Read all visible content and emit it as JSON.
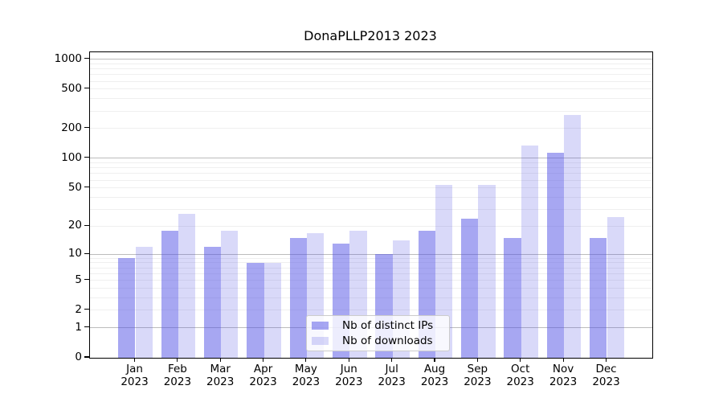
{
  "title": "DonaPLLP2013 2023",
  "chart_data": {
    "type": "bar",
    "title": "DonaPLLP2013 2023",
    "categories": [
      "Jan 2023",
      "Feb 2023",
      "Mar 2023",
      "Apr 2023",
      "May 2023",
      "Jun 2023",
      "Jul 2023",
      "Aug 2023",
      "Sep 2023",
      "Oct 2023",
      "Nov 2023",
      "Dec 2023"
    ],
    "series": [
      {
        "name": "Nb of distinct IPs",
        "color": "rgba(80,80,229,0.5)",
        "values": [
          9,
          18,
          12,
          8,
          15,
          13,
          10,
          18,
          24,
          15,
          113,
          15
        ]
      },
      {
        "name": "Nb of downloads",
        "color": "rgba(80,80,229,0.22)",
        "values": [
          12,
          27,
          18,
          8,
          17,
          18,
          14,
          54,
          54,
          135,
          275,
          25
        ]
      }
    ],
    "y_axis": {
      "scale": "log1p",
      "tick_labels": [
        "0",
        "1",
        "2",
        "5",
        "10",
        "20",
        "50",
        "100",
        "200",
        "500",
        "1000"
      ],
      "tick_values": [
        0,
        1,
        2,
        5,
        10,
        20,
        50,
        100,
        200,
        500,
        1000
      ]
    },
    "xlabel": "",
    "ylabel": "",
    "legend_position": "lower center",
    "grid": true
  },
  "colors": {
    "bar_base": "#5050e5",
    "grid_major": "#bcbcbc",
    "grid_minor": "#efefef",
    "axis": "#000000",
    "legend_border": "#cccccc"
  }
}
